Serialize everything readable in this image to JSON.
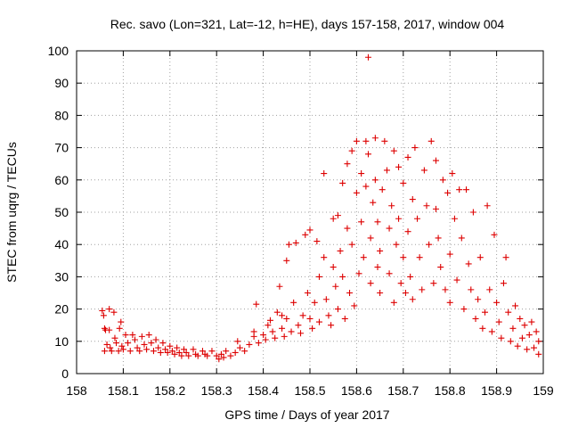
{
  "chart_data": {
    "type": "scatter",
    "title": "Rec. savo (Lon=321, Lat=-12, h=HE), days 157-158, 2017, window 004",
    "xlabel": "GPS time / Days of year 2017",
    "ylabel": "STEC from uqrg / TECUs",
    "xlim": [
      158,
      159
    ],
    "ylim": [
      0,
      100
    ],
    "xticks": [
      "158",
      "158.1",
      "158.2",
      "158.3",
      "158.4",
      "158.5",
      "158.6",
      "158.7",
      "158.8",
      "158.9",
      "159"
    ],
    "yticks": [
      "0",
      "10",
      "20",
      "30",
      "40",
      "50",
      "60",
      "70",
      "80",
      "90",
      "100"
    ],
    "grid": true,
    "series": [
      {
        "color": "#dd0000",
        "marker": "plus",
        "points": [
          [
            158.055,
            19.5
          ],
          [
            158.058,
            18
          ],
          [
            158.06,
            14
          ],
          [
            158.062,
            13.5
          ],
          [
            158.065,
            9
          ],
          [
            158.06,
            7
          ],
          [
            158.07,
            20
          ],
          [
            158.07,
            13.5
          ],
          [
            158.072,
            8
          ],
          [
            158.075,
            7
          ],
          [
            158.08,
            19
          ],
          [
            158.082,
            11
          ],
          [
            158.085,
            9.5
          ],
          [
            158.09,
            7
          ],
          [
            158.092,
            14
          ],
          [
            158.095,
            16
          ],
          [
            158.097,
            8.5
          ],
          [
            158.1,
            7.5
          ],
          [
            158.105,
            12
          ],
          [
            158.11,
            9.5
          ],
          [
            158.115,
            7
          ],
          [
            158.12,
            12
          ],
          [
            158.125,
            10.5
          ],
          [
            158.13,
            8
          ],
          [
            158.135,
            7
          ],
          [
            158.14,
            11.5
          ],
          [
            158.145,
            9
          ],
          [
            158.15,
            7.5
          ],
          [
            158.155,
            12
          ],
          [
            158.16,
            9.5
          ],
          [
            158.165,
            7
          ],
          [
            158.17,
            10.5
          ],
          [
            158.175,
            8
          ],
          [
            158.18,
            6.5
          ],
          [
            158.185,
            9.5
          ],
          [
            158.19,
            7.5
          ],
          [
            158.195,
            6.5
          ],
          [
            158.2,
            8.5
          ],
          [
            158.205,
            7
          ],
          [
            158.21,
            6
          ],
          [
            158.215,
            8
          ],
          [
            158.22,
            6.5
          ],
          [
            158.225,
            5.5
          ],
          [
            158.23,
            7.5
          ],
          [
            158.235,
            6.5
          ],
          [
            158.24,
            5.5
          ],
          [
            158.25,
            7.5
          ],
          [
            158.255,
            6
          ],
          [
            158.26,
            5.5
          ],
          [
            158.27,
            7
          ],
          [
            158.275,
            6
          ],
          [
            158.28,
            5.5
          ],
          [
            158.29,
            7
          ],
          [
            158.3,
            5.5
          ],
          [
            158.305,
            4.5
          ],
          [
            158.31,
            6
          ],
          [
            158.315,
            5
          ],
          [
            158.32,
            7
          ],
          [
            158.33,
            5.5
          ],
          [
            158.34,
            6.5
          ],
          [
            158.345,
            10
          ],
          [
            158.35,
            8
          ],
          [
            158.36,
            7
          ],
          [
            158.37,
            9
          ],
          [
            158.38,
            11.5
          ],
          [
            158.38,
            13
          ],
          [
            158.385,
            21.5
          ],
          [
            158.39,
            9.5
          ],
          [
            158.4,
            12
          ],
          [
            158.405,
            10.5
          ],
          [
            158.41,
            15
          ],
          [
            158.415,
            16.5
          ],
          [
            158.42,
            13
          ],
          [
            158.425,
            11
          ],
          [
            158.43,
            19
          ],
          [
            158.435,
            27
          ],
          [
            158.44,
            18
          ],
          [
            158.44,
            14
          ],
          [
            158.445,
            11.5
          ],
          [
            158.45,
            17
          ],
          [
            158.45,
            35
          ],
          [
            158.455,
            40
          ],
          [
            158.46,
            13
          ],
          [
            158.465,
            22
          ],
          [
            158.47,
            40.5
          ],
          [
            158.475,
            15
          ],
          [
            158.48,
            12.5
          ],
          [
            158.485,
            18
          ],
          [
            158.49,
            43
          ],
          [
            158.495,
            25
          ],
          [
            158.5,
            44.5
          ],
          [
            158.5,
            17
          ],
          [
            158.505,
            14
          ],
          [
            158.51,
            22
          ],
          [
            158.515,
            41
          ],
          [
            158.52,
            30
          ],
          [
            158.52,
            16
          ],
          [
            158.53,
            36
          ],
          [
            158.53,
            62
          ],
          [
            158.535,
            23
          ],
          [
            158.54,
            18
          ],
          [
            158.545,
            15
          ],
          [
            158.55,
            48
          ],
          [
            158.55,
            33
          ],
          [
            158.555,
            27
          ],
          [
            158.56,
            49
          ],
          [
            158.56,
            20
          ],
          [
            158.565,
            38
          ],
          [
            158.57,
            59
          ],
          [
            158.57,
            30
          ],
          [
            158.575,
            17
          ],
          [
            158.58,
            65
          ],
          [
            158.58,
            45
          ],
          [
            158.585,
            25
          ],
          [
            158.59,
            69
          ],
          [
            158.59,
            40
          ],
          [
            158.595,
            21
          ],
          [
            158.6,
            72
          ],
          [
            158.6,
            56
          ],
          [
            158.605,
            31
          ],
          [
            158.61,
            62
          ],
          [
            158.61,
            47
          ],
          [
            158.615,
            36
          ],
          [
            158.62,
            72
          ],
          [
            158.62,
            58
          ],
          [
            158.625,
            98
          ],
          [
            158.625,
            68
          ],
          [
            158.63,
            42
          ],
          [
            158.63,
            28
          ],
          [
            158.635,
            53
          ],
          [
            158.64,
            73
          ],
          [
            158.64,
            60
          ],
          [
            158.645,
            47
          ],
          [
            158.645,
            33
          ],
          [
            158.65,
            38
          ],
          [
            158.65,
            25
          ],
          [
            158.655,
            57
          ],
          [
            158.66,
            72
          ],
          [
            158.665,
            63
          ],
          [
            158.67,
            45
          ],
          [
            158.67,
            31
          ],
          [
            158.675,
            52
          ],
          [
            158.68,
            69
          ],
          [
            158.68,
            22
          ],
          [
            158.685,
            40
          ],
          [
            158.69,
            64
          ],
          [
            158.69,
            48
          ],
          [
            158.695,
            28
          ],
          [
            158.7,
            59
          ],
          [
            158.7,
            36
          ],
          [
            158.705,
            25
          ],
          [
            158.71,
            67
          ],
          [
            158.71,
            44
          ],
          [
            158.715,
            30
          ],
          [
            158.72,
            54
          ],
          [
            158.72,
            23
          ],
          [
            158.725,
            70
          ],
          [
            158.73,
            48
          ],
          [
            158.735,
            36
          ],
          [
            158.74,
            26
          ],
          [
            158.745,
            63
          ],
          [
            158.75,
            52
          ],
          [
            158.755,
            40
          ],
          [
            158.76,
            72
          ],
          [
            158.765,
            28
          ],
          [
            158.77,
            66
          ],
          [
            158.77,
            51
          ],
          [
            158.775,
            42
          ],
          [
            158.78,
            33
          ],
          [
            158.785,
            60
          ],
          [
            158.79,
            26
          ],
          [
            158.795,
            56
          ],
          [
            158.8,
            37
          ],
          [
            158.8,
            22
          ],
          [
            158.805,
            62
          ],
          [
            158.81,
            48
          ],
          [
            158.815,
            29
          ],
          [
            158.82,
            57
          ],
          [
            158.825,
            42
          ],
          [
            158.83,
            20
          ],
          [
            158.835,
            57
          ],
          [
            158.84,
            34
          ],
          [
            158.845,
            26
          ],
          [
            158.85,
            50
          ],
          [
            158.855,
            17
          ],
          [
            158.86,
            23
          ],
          [
            158.865,
            36
          ],
          [
            158.87,
            14
          ],
          [
            158.875,
            19
          ],
          [
            158.88,
            52
          ],
          [
            158.885,
            26
          ],
          [
            158.89,
            13
          ],
          [
            158.895,
            43
          ],
          [
            158.9,
            22
          ],
          [
            158.905,
            16
          ],
          [
            158.91,
            11
          ],
          [
            158.915,
            28
          ],
          [
            158.92,
            36
          ],
          [
            158.925,
            19
          ],
          [
            158.93,
            10
          ],
          [
            158.935,
            14
          ],
          [
            158.94,
            21
          ],
          [
            158.945,
            8.5
          ],
          [
            158.95,
            17
          ],
          [
            158.955,
            11
          ],
          [
            158.96,
            15
          ],
          [
            158.965,
            7.5
          ],
          [
            158.97,
            12
          ],
          [
            158.975,
            16
          ],
          [
            158.98,
            8
          ],
          [
            158.985,
            13
          ],
          [
            158.99,
            10
          ],
          [
            158.99,
            6
          ]
        ]
      }
    ]
  }
}
